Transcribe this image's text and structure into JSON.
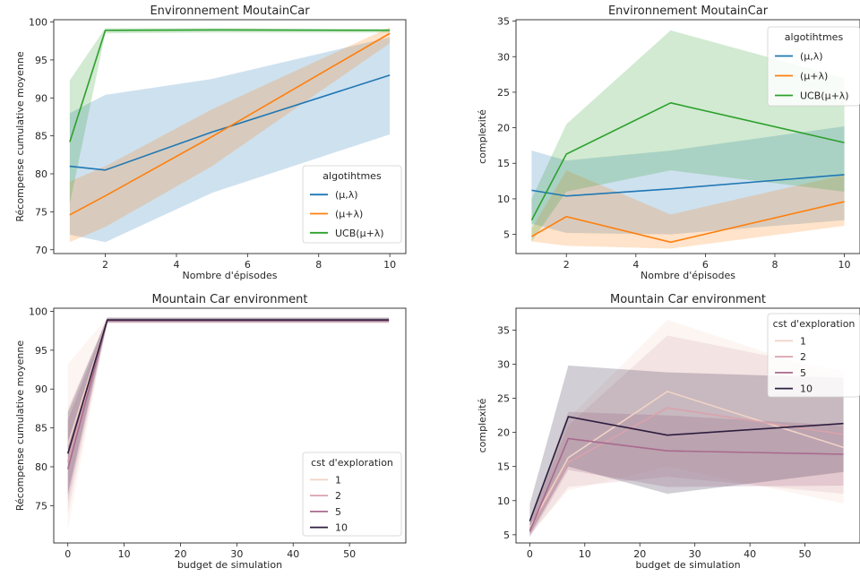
{
  "chart_data": [
    {
      "type": "line",
      "title": "Environnement MoutainCar",
      "xlabel": "Nombre d'épisodes",
      "ylabel": "Récompense cumulative moyenne",
      "xlim": [
        0.55,
        10.45
      ],
      "ylim": [
        69.5,
        100.3
      ],
      "xticks": [
        2,
        4,
        6,
        8,
        10
      ],
      "yticks": [
        70,
        75,
        80,
        85,
        90,
        95,
        100
      ],
      "legend": {
        "title": "algotihtmes",
        "position": "lower-right"
      },
      "x": [
        1,
        2,
        5,
        10
      ],
      "series": [
        {
          "name": "(μ,λ)",
          "color": "#1f77b4",
          "values": [
            81.0,
            80.5,
            85.5,
            93.0
          ],
          "lower": [
            72.0,
            71.0,
            77.5,
            85.2
          ],
          "upper": [
            88.0,
            90.4,
            92.5,
            98.0
          ]
        },
        {
          "name": "(μ+λ)",
          "color": "#ff7f0e",
          "values": [
            74.6,
            77.1,
            84.9,
            98.5
          ],
          "lower": [
            71.0,
            73.0,
            81.0,
            97.2
          ],
          "upper": [
            79.0,
            81.0,
            88.5,
            99.3
          ]
        },
        {
          "name": "UCB(μ+λ)",
          "color": "#2ca02c",
          "values": [
            84.2,
            98.9,
            98.95,
            98.9
          ],
          "lower": [
            76.0,
            98.5,
            98.6,
            98.6
          ],
          "upper": [
            92.3,
            99.2,
            99.2,
            99.1
          ]
        }
      ]
    },
    {
      "type": "line",
      "title": "Environnement MoutainCar",
      "xlabel": "Nombre d'épisodes",
      "ylabel": "complexité",
      "xlim": [
        0.55,
        10.45
      ],
      "ylim": [
        2.3,
        35.2
      ],
      "xticks": [
        2,
        4,
        6,
        8,
        10
      ],
      "yticks": [
        5,
        10,
        15,
        20,
        25,
        30,
        35
      ],
      "legend": {
        "title": "algotihtmes",
        "position": "upper-right"
      },
      "x": [
        1,
        2,
        5,
        10
      ],
      "series": [
        {
          "name": "(μ,λ)",
          "color": "#1f77b4",
          "values": [
            11.2,
            10.4,
            11.4,
            13.4
          ],
          "lower": [
            6.5,
            5.2,
            5.0,
            7.0
          ],
          "upper": [
            16.8,
            15.4,
            16.8,
            20.2
          ]
        },
        {
          "name": "(μ+λ)",
          "color": "#ff7f0e",
          "values": [
            4.7,
            7.5,
            3.9,
            9.6
          ],
          "lower": [
            4.0,
            3.4,
            3.0,
            6.2
          ],
          "upper": [
            5.8,
            14.0,
            7.8,
            13.4
          ]
        },
        {
          "name": "UCB(μ+λ)",
          "color": "#2ca02c",
          "values": [
            7.0,
            16.3,
            23.5,
            17.9
          ],
          "lower": [
            4.0,
            11.0,
            14.0,
            11.0
          ],
          "upper": [
            10.0,
            20.5,
            33.7,
            27.0
          ]
        }
      ]
    },
    {
      "type": "line",
      "title": "Mountain Car environment",
      "xlabel": "budget de  simulation",
      "ylabel": "Récompense cumulative moyenne",
      "xlim": [
        -2.5,
        60.0
      ],
      "ylim": [
        70.2,
        100.4
      ],
      "xticks": [
        0,
        10,
        20,
        30,
        40,
        50
      ],
      "yticks": [
        75,
        80,
        85,
        90,
        95,
        100
      ],
      "legend": {
        "title": "cst d'exploration",
        "position": "lower-right"
      },
      "x": [
        0,
        7,
        25,
        57
      ],
      "series": [
        {
          "name": "1",
          "color": "#f0d3c6",
          "values": [
            82.8,
            98.9,
            98.9,
            98.9
          ],
          "lower": [
            72.0,
            98.6,
            98.6,
            98.6
          ],
          "upper": [
            93.2,
            99.2,
            99.2,
            99.2
          ]
        },
        {
          "name": "2",
          "color": "#d9a2ac",
          "values": [
            80.6,
            98.8,
            98.8,
            98.8
          ],
          "lower": [
            74.0,
            98.5,
            98.5,
            98.5
          ],
          "upper": [
            87.5,
            99.1,
            99.1,
            99.1
          ]
        },
        {
          "name": "5",
          "color": "#a96a8e",
          "values": [
            79.7,
            98.8,
            98.8,
            98.8
          ],
          "lower": [
            75.5,
            98.5,
            98.5,
            98.5
          ],
          "upper": [
            86.0,
            99.1,
            99.1,
            99.1
          ]
        },
        {
          "name": "10",
          "color": "#2d1e3e",
          "values": [
            81.7,
            98.9,
            98.9,
            98.9
          ],
          "lower": [
            76.5,
            98.6,
            98.6,
            98.6
          ],
          "upper": [
            87.0,
            99.2,
            99.2,
            99.2
          ]
        }
      ]
    },
    {
      "type": "line",
      "title": "Mountain Car environment",
      "xlabel": "budget de  simulation",
      "ylabel": "complexité",
      "xlim": [
        -2.5,
        60.0
      ],
      "ylim": [
        3.8,
        38.2
      ],
      "xticks": [
        0,
        10,
        20,
        30,
        40,
        50
      ],
      "yticks": [
        5,
        10,
        15,
        20,
        25,
        30,
        35
      ],
      "legend": {
        "title": "cst d'exploration",
        "position": "upper-right"
      },
      "x": [
        0,
        7,
        25,
        57
      ],
      "series": [
        {
          "name": "1",
          "color": "#f0d3c6",
          "values": [
            6.0,
            16.3,
            26.0,
            17.8
          ],
          "lower": [
            5.0,
            11.5,
            15.0,
            9.6
          ],
          "upper": [
            7.5,
            22.0,
            36.5,
            28.0
          ]
        },
        {
          "name": "2",
          "color": "#d9a2ac",
          "values": [
            5.8,
            15.6,
            23.6,
            19.7
          ],
          "lower": [
            4.8,
            12.0,
            13.5,
            11.0
          ],
          "upper": [
            7.0,
            21.0,
            34.2,
            29.0
          ]
        },
        {
          "name": "5",
          "color": "#a96a8e",
          "values": [
            5.5,
            19.1,
            17.3,
            16.8
          ],
          "lower": [
            4.6,
            14.5,
            12.0,
            12.2
          ],
          "upper": [
            6.8,
            23.0,
            22.5,
            21.0
          ]
        },
        {
          "name": "10",
          "color": "#2d1e3e",
          "values": [
            7.0,
            22.3,
            19.6,
            21.3
          ],
          "lower": [
            5.0,
            15.0,
            11.0,
            14.2
          ],
          "upper": [
            9.5,
            29.8,
            28.8,
            28.0
          ]
        }
      ]
    }
  ]
}
